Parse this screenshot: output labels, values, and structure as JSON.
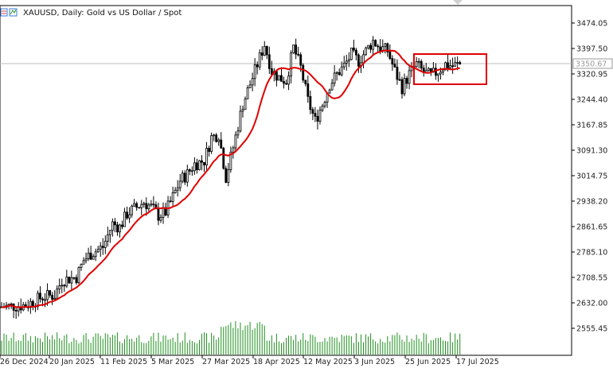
{
  "header": {
    "symbol_title": "XAUUSD, Daily:  Gold vs US Dollar / Spot"
  },
  "colors": {
    "ma": "#e00000",
    "box": "#e00000",
    "volume": "#1f8f1f",
    "candle": "#000000",
    "grid": "#c8c8c8"
  },
  "current_price": "3350.67",
  "chart_data": {
    "type": "candlestick",
    "title": "XAUUSD, Daily:  Gold vs US Dollar / Spot",
    "y_ticks": [
      "3474.05",
      "3397.50",
      "3320.95",
      "3244.40",
      "3167.85",
      "3091.30",
      "3014.75",
      "2938.20",
      "2861.65",
      "2785.10",
      "2708.55",
      "2632.00",
      "2555.45"
    ],
    "x_ticks": [
      "26 Dec 2024",
      "20 Jan 2025",
      "11 Feb 2025",
      "5 Mar 2025",
      "27 Mar 2025",
      "18 Apr 2025",
      "12 May 2025",
      "3 Jun 2025",
      "25 Jun 2025",
      "17 Jul 2025"
    ],
    "ylim": [
      2510,
      3530
    ],
    "indicators": [
      "moving average (red)",
      "volume (green)"
    ],
    "annotation": "rectangle around price consolidation from late June to mid July 2025",
    "close_path": [
      [
        0,
        2620
      ],
      [
        10,
        2625
      ],
      [
        17,
        2650
      ],
      [
        22,
        2655
      ],
      [
        25,
        2700
      ],
      [
        31,
        2710
      ],
      [
        34,
        2760
      ],
      [
        37,
        2780
      ],
      [
        42,
        2800
      ],
      [
        46,
        2870
      ],
      [
        49,
        2860
      ],
      [
        52,
        2900
      ],
      [
        56,
        2920
      ],
      [
        59,
        2935
      ],
      [
        62,
        2920
      ],
      [
        65,
        2895
      ],
      [
        68,
        2905
      ],
      [
        71,
        2950
      ],
      [
        74,
        3000
      ],
      [
        77,
        3020
      ],
      [
        80,
        3050
      ],
      [
        84,
        3060
      ],
      [
        87,
        3130
      ],
      [
        90,
        3140
      ],
      [
        93,
        3010
      ],
      [
        96,
        3100
      ],
      [
        100,
        3230
      ],
      [
        103,
        3290
      ],
      [
        106,
        3350
      ],
      [
        109,
        3410
      ],
      [
        112,
        3330
      ],
      [
        115,
        3310
      ],
      [
        118,
        3300
      ],
      [
        121,
        3400
      ],
      [
        124,
        3340
      ],
      [
        127,
        3240
      ],
      [
        130,
        3180
      ],
      [
        133,
        3230
      ],
      [
        136,
        3290
      ],
      [
        139,
        3320
      ],
      [
        142,
        3345
      ],
      [
        145,
        3380
      ],
      [
        148,
        3360
      ],
      [
        151,
        3390
      ],
      [
        154,
        3420
      ],
      [
        157,
        3400
      ],
      [
        160,
        3390
      ],
      [
        163,
        3330
      ],
      [
        166,
        3280
      ],
      [
        169,
        3320
      ],
      [
        172,
        3350
      ],
      [
        175,
        3325
      ],
      [
        178,
        3315
      ],
      [
        181,
        3330
      ],
      [
        184,
        3350
      ],
      [
        187,
        3345
      ],
      [
        190,
        3350
      ]
    ]
  }
}
